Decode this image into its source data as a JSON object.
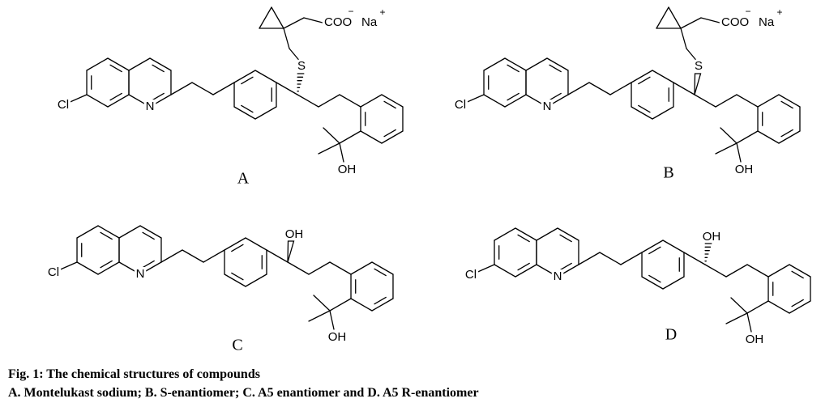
{
  "structures": [
    {
      "label": "A",
      "atoms": {
        "chlorine": "Cl",
        "nitrogen": "N",
        "sulfur": "S",
        "hydroxyl": "OH",
        "carboxylate": "COO",
        "charge_minus": "−",
        "sodium": "Na",
        "charge_plus": "+"
      }
    },
    {
      "label": "B",
      "atoms": {
        "chlorine": "Cl",
        "nitrogen": "N",
        "sulfur": "S",
        "hydroxyl": "OH",
        "carboxylate": "COO",
        "charge_minus": "−",
        "sodium": "Na",
        "charge_plus": "+"
      }
    },
    {
      "label": "C",
      "atoms": {
        "chlorine": "Cl",
        "nitrogen": "N",
        "chiral_hydroxyl": "OH",
        "hydroxyl": "OH"
      }
    },
    {
      "label": "D",
      "atoms": {
        "chlorine": "Cl",
        "nitrogen": "N",
        "chiral_hydroxyl": "OH",
        "hydroxyl": "OH"
      }
    }
  ],
  "caption": {
    "title": "Fig. 1: The chemical structures of compounds",
    "description": "A. Montelukast sodium; B. S-enantiomer; C. A5 enantiomer and D. A5 R-enantiomer"
  }
}
